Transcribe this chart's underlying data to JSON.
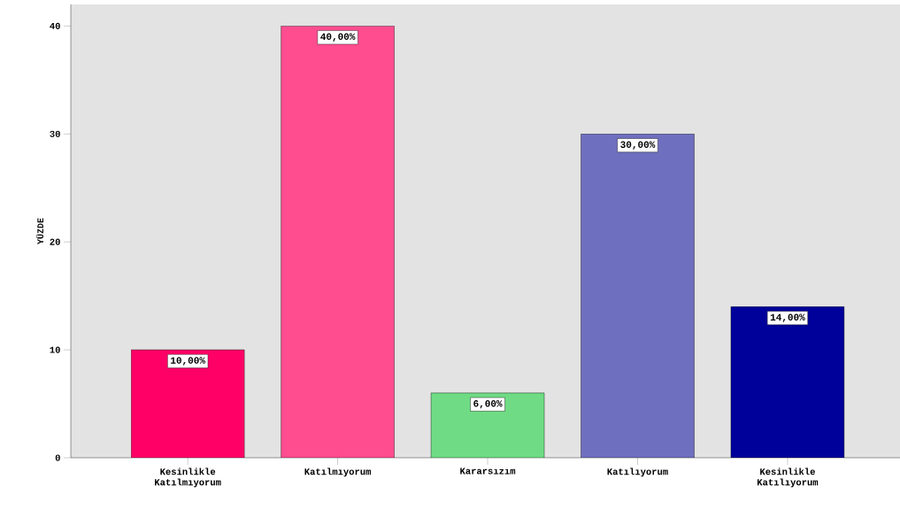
{
  "chart_data": {
    "type": "bar",
    "ylabel": "YÜZDE",
    "categories": [
      "Kesinlikle Katılmıyorum",
      "Katılmıyorum",
      "Kararsızım",
      "Katılıyorum",
      "Kesinlikle Katılıyorum"
    ],
    "values": [
      10,
      40,
      6,
      30,
      14
    ],
    "value_labels": [
      "10,00%",
      "40,00%",
      "6,00%",
      "30,00%",
      "14,00%"
    ],
    "colors": [
      "#ff0066",
      "#ff4d8f",
      "#6fdc85",
      "#6f6fbf",
      "#00009a"
    ],
    "ylim": [
      0,
      42
    ],
    "yticks": [
      0,
      10,
      20,
      30,
      40
    ]
  }
}
